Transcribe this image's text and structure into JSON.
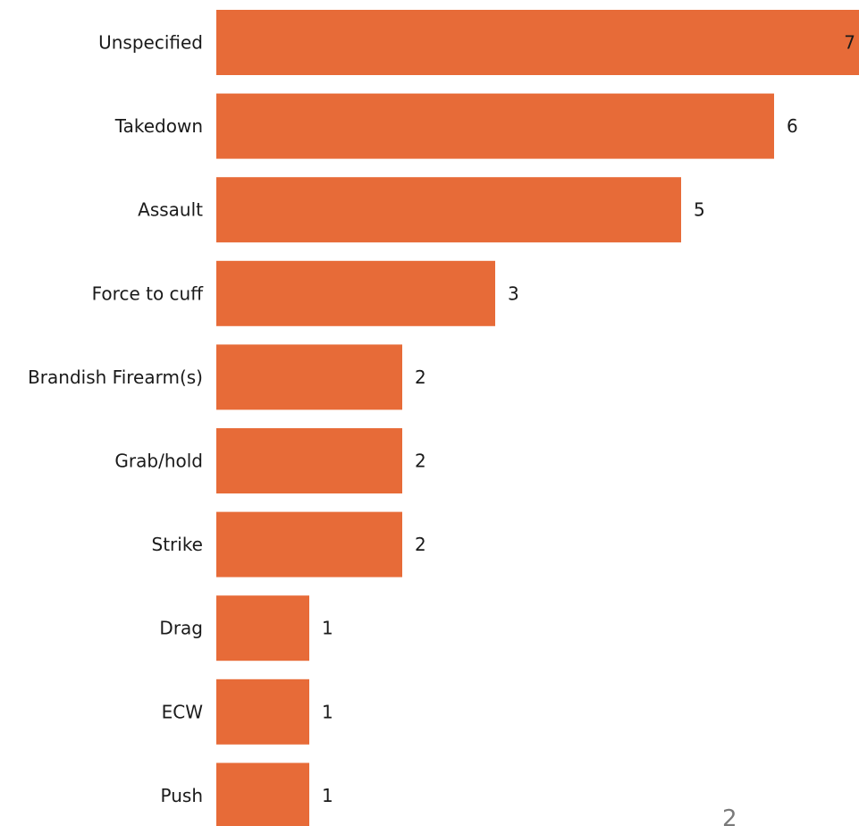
{
  "chart_data": {
    "type": "bar",
    "orientation": "horizontal",
    "categories": [
      "Unspecified",
      "Takedown",
      "Assault",
      "Force to cuff",
      "Brandish Firearm(s)",
      "Grab/hold",
      "Strike",
      "Drag",
      "ECW",
      "Push"
    ],
    "values": [
      7,
      6,
      5,
      3,
      2,
      2,
      2,
      1,
      1,
      1
    ],
    "data_labels": [
      "7",
      "6",
      "5",
      "3",
      "2",
      "2",
      "2",
      "1",
      "1",
      "1"
    ],
    "bar_color": "#E76B38",
    "xlim": [
      0,
      7
    ],
    "grid": false,
    "legend": "none"
  },
  "footer": {
    "page_number": "2"
  }
}
